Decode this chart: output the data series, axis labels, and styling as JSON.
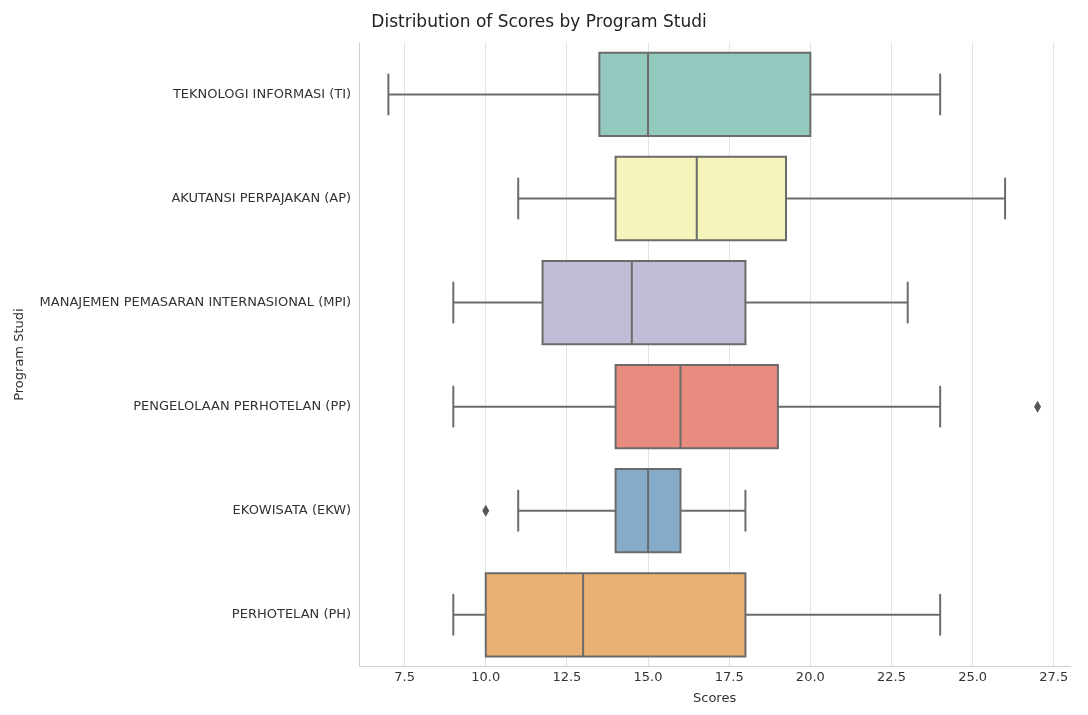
{
  "chart_data": {
    "type": "box",
    "title": "Distribution of Scores by Program Studi",
    "xlabel": "Scores",
    "ylabel": "Program Studi",
    "orientation": "horizontal",
    "categories": [
      "TEKNOLOGI INFORMASI (TI)",
      "AKUTANSI PERPAJAKAN (AP)",
      "MANAJEMEN PEMASARAN INTERNASIONAL (MPI)",
      "PENGELOLAAN PERHOTELAN (PP)",
      "EKOWISATA (EKW)",
      "PERHOTELAN (PH)"
    ],
    "boxes": [
      {
        "low": 7,
        "q1": 13.5,
        "median": 15,
        "q3": 20,
        "high": 24
      },
      {
        "low": 11,
        "q1": 14,
        "median": 16.5,
        "q3": 19.25,
        "high": 26
      },
      {
        "low": 9,
        "q1": 11.75,
        "median": 14.5,
        "q3": 18,
        "high": 23
      },
      {
        "low": 9,
        "q1": 14,
        "median": 16,
        "q3": 19,
        "high": 24,
        "outliers": [
          27
        ]
      },
      {
        "low": 11,
        "q1": 14,
        "median": 15,
        "q3": 16,
        "high": 18,
        "outliers": [
          10
        ]
      },
      {
        "low": 9,
        "q1": 10,
        "median": 13,
        "q3": 18,
        "high": 24
      }
    ],
    "colors": [
      "#93c9bf",
      "#f5f5bb",
      "#c0bdd6",
      "#e88c80",
      "#86abc9",
      "#e9b274"
    ],
    "xlim": [
      6.1,
      28.0
    ],
    "xticks": [
      7.5,
      {
        "value": 10,
        "label": "10.0"
      },
      12.5,
      {
        "value": 15,
        "label": "15.0"
      },
      17.5,
      {
        "value": 20,
        "label": "20.0"
      },
      22.5,
      {
        "value": 25,
        "label": "25.0"
      },
      27.5
    ],
    "grid": "x",
    "legend": false
  }
}
